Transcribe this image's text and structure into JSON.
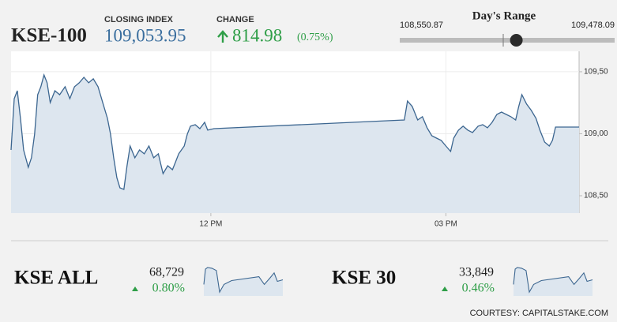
{
  "header": {
    "name": "KSE-100",
    "closing_label": "CLOSING INDEX",
    "closing": {
      "value": 109053.95,
      "label": "109,053.95"
    },
    "change_label": "CHANGE",
    "change": "814.98",
    "change_pct": "(0.75%)"
  },
  "days_range": {
    "title": "Day's Range",
    "low": {
      "value": 108550.87,
      "label": "108,550.87"
    },
    "high": {
      "value": 109478.09,
      "label": "109,478.09"
    }
  },
  "chart_data": {
    "type": "line",
    "color": "#3c6690",
    "fill": "#dde6ef",
    "x": [
      9.45,
      9.49,
      9.53,
      9.57,
      9.61,
      9.67,
      9.71,
      9.75,
      9.79,
      9.83,
      9.87,
      9.91,
      9.95,
      10.01,
      10.07,
      10.14,
      10.2,
      10.26,
      10.32,
      10.38,
      10.44,
      10.5,
      10.56,
      10.62,
      10.68,
      10.72,
      10.76,
      10.8,
      10.84,
      10.89,
      10.93,
      10.97,
      11.03,
      11.09,
      11.15,
      11.21,
      11.27,
      11.33,
      11.39,
      11.45,
      11.51,
      11.55,
      11.59,
      11.66,
      11.7,
      11.74,
      11.8,
      11.86,
      11.92,
      11.96,
      12.04,
      14.47,
      14.51,
      14.57,
      14.64,
      14.7,
      14.76,
      14.82,
      14.88,
      14.94,
      15.0,
      15.06,
      15.1,
      15.16,
      15.22,
      15.28,
      15.34,
      15.41,
      15.47,
      15.53,
      15.59,
      15.65,
      15.71,
      15.77,
      15.83,
      15.89,
      15.93,
      15.97,
      16.03,
      16.09,
      16.15,
      16.2,
      16.26,
      16.32,
      16.36,
      16.4,
      16.7
    ],
    "values": [
      108869,
      109283,
      109347,
      109124,
      108869,
      108729,
      108806,
      108997,
      109315,
      109379,
      109474,
      109411,
      109252,
      109347,
      109315,
      109379,
      109283,
      109379,
      109411,
      109455,
      109411,
      109443,
      109379,
      109252,
      109124,
      108997,
      108806,
      108646,
      108564,
      108551,
      108742,
      108901,
      108806,
      108869,
      108838,
      108901,
      108806,
      108838,
      108678,
      108742,
      108710,
      108774,
      108838,
      108901,
      108997,
      109061,
      109073,
      109041,
      109092,
      109029,
      109041,
      109111,
      109264,
      109220,
      109111,
      109137,
      109048,
      108984,
      108965,
      108946,
      108901,
      108857,
      108965,
      109029,
      109061,
      109029,
      109010,
      109061,
      109073,
      109048,
      109092,
      109156,
      109175,
      109156,
      109137,
      109111,
      109220,
      109315,
      109239,
      109188,
      109124,
      109029,
      108933,
      108901,
      108946,
      109054,
      109054
    ],
    "xlim": [
      9.45,
      16.7
    ],
    "ylim": [
      108360,
      109665
    ],
    "xticks": [
      {
        "value": 12,
        "label": "12 PM"
      },
      {
        "value": 15,
        "label": "03 PM"
      }
    ],
    "yticks": [
      {
        "value": 109500,
        "label": "109,50"
      },
      {
        "value": 109000,
        "label": "109,00"
      },
      {
        "value": 108500,
        "label": "108,50"
      }
    ],
    "grid": true
  },
  "indices": [
    {
      "name": "KSE ALL",
      "value": "68,729",
      "change": "0.80%",
      "chart": {
        "type": "line",
        "color": "#3c6690",
        "fill": "#dde6ef",
        "x": [
          9.45,
          9.6,
          9.8,
          10.2,
          10.6,
          10.9,
          11.3,
          12.0,
          14.5,
          15.0,
          15.5,
          15.9,
          16.2,
          16.7
        ],
        "values": [
          68600,
          68800,
          68820,
          68810,
          68780,
          68500,
          68600,
          68650,
          68700,
          68600,
          68680,
          68750,
          68640,
          68660
        ],
        "xlim": [
          9.45,
          16.7
        ],
        "ylim": [
          68450,
          68850
        ]
      }
    },
    {
      "name": "KSE 30",
      "value": "33,849",
      "change": "0.46%",
      "chart": {
        "type": "line",
        "color": "#3c6690",
        "fill": "#dde6ef",
        "x": [
          9.45,
          9.6,
          9.8,
          10.2,
          10.6,
          10.9,
          11.3,
          12.0,
          14.5,
          15.0,
          15.5,
          15.9,
          16.2,
          16.7
        ],
        "values": [
          33700,
          33900,
          33920,
          33910,
          33880,
          33600,
          33700,
          33750,
          33800,
          33700,
          33780,
          33850,
          33740,
          33760
        ],
        "xlim": [
          9.45,
          16.7
        ],
        "ylim": [
          33550,
          33950
        ]
      }
    }
  ],
  "courtesy": "COURTESY: CAPITALSTAKE.COM"
}
